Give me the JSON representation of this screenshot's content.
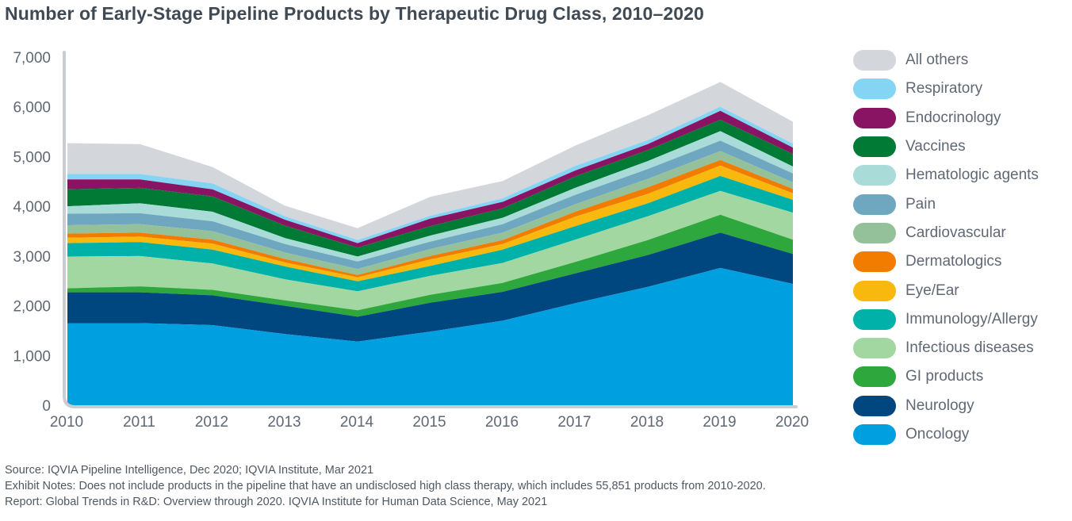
{
  "title": "Number of Early-Stage Pipeline Products by Therapeutic Drug Class, 2010–2020",
  "chart_data": {
    "type": "area",
    "stacked": true,
    "title": "Number of Early-Stage Pipeline Products by Therapeutic Drug Class, 2010–2020",
    "xlabel": "",
    "ylabel": "",
    "x": [
      "2010",
      "2011",
      "2012",
      "2013",
      "2014",
      "2015",
      "2016",
      "2017",
      "2018",
      "2019",
      "2020"
    ],
    "ylim": [
      0,
      7000
    ],
    "yticks": [
      0,
      1000,
      2000,
      3000,
      4000,
      5000,
      6000,
      7000
    ],
    "ytick_labels": [
      "0",
      "1,000",
      "2,000",
      "3,000",
      "4,000",
      "5,000",
      "6,000",
      "7,000"
    ],
    "grid": false,
    "legend_position": "right",
    "series": [
      {
        "name": "Oncology",
        "color": "#009fe0",
        "values": [
          1650,
          1650,
          1610,
          1430,
          1280,
          1480,
          1700,
          2050,
          2380,
          2760,
          2440
        ]
      },
      {
        "name": "Neurology",
        "color": "#00467f",
        "values": [
          620,
          620,
          600,
          570,
          500,
          580,
          580,
          600,
          640,
          710,
          600
        ]
      },
      {
        "name": "GI products",
        "color": "#2ea83c",
        "values": [
          80,
          120,
          110,
          110,
          130,
          160,
          180,
          230,
          300,
          360,
          290
        ]
      },
      {
        "name": "Infectious diseases",
        "color": "#a3d7a1",
        "values": [
          640,
          610,
          530,
          420,
          380,
          380,
          400,
          450,
          480,
          480,
          540
        ]
      },
      {
        "name": "Immunology/Allergy",
        "color": "#00b1a9",
        "values": [
          270,
          280,
          280,
          260,
          200,
          200,
          270,
          270,
          260,
          300,
          260
        ]
      },
      {
        "name": "Eye/Ear",
        "color": "#f8b80e",
        "values": [
          110,
          110,
          120,
          80,
          80,
          130,
          110,
          190,
          190,
          210,
          130
        ]
      },
      {
        "name": "Dermatologics",
        "color": "#f17c00",
        "values": [
          80,
          80,
          80,
          70,
          50,
          70,
          80,
          100,
          130,
          110,
          90
        ]
      },
      {
        "name": "Cardiovascular",
        "color": "#95c19a",
        "values": [
          170,
          170,
          170,
          130,
          120,
          140,
          150,
          150,
          170,
          180,
          130
        ]
      },
      {
        "name": "Pain",
        "color": "#6fa7c0",
        "values": [
          230,
          220,
          200,
          170,
          150,
          150,
          170,
          190,
          200,
          210,
          180
        ]
      },
      {
        "name": "Hematologic agents",
        "color": "#a9dcd9",
        "values": [
          150,
          200,
          190,
          120,
          100,
          120,
          130,
          140,
          160,
          190,
          140
        ]
      },
      {
        "name": "Vaccines",
        "color": "#007a34",
        "values": [
          340,
          310,
          310,
          250,
          180,
          190,
          190,
          230,
          220,
          230,
          250
        ]
      },
      {
        "name": "Endocrinology",
        "color": "#8a1464",
        "values": [
          200,
          170,
          140,
          120,
          90,
          150,
          130,
          120,
          120,
          180,
          130
        ]
      },
      {
        "name": "Respiratory",
        "color": "#84d4f4",
        "values": [
          110,
          110,
          120,
          70,
          60,
          60,
          70,
          90,
          80,
          80,
          80
        ]
      },
      {
        "name": "All others",
        "color": "#d3d6da",
        "values": [
          620,
          600,
          330,
          210,
          240,
          380,
          350,
          410,
          500,
          500,
          440
        ]
      }
    ]
  },
  "notes": {
    "source": "Source: IQVIA Pipeline Intelligence, Dec 2020; IQVIA Institute, Mar 2021",
    "exhibit": "Exhibit Notes: Does not include products in the pipeline that have an undisclosed high class therapy, which includes 55,851 products from 2010-2020.",
    "report": "Report: Global Trends in R&D: Overview through 2020. IQVIA Institute for Human Data Science, May 2021"
  }
}
